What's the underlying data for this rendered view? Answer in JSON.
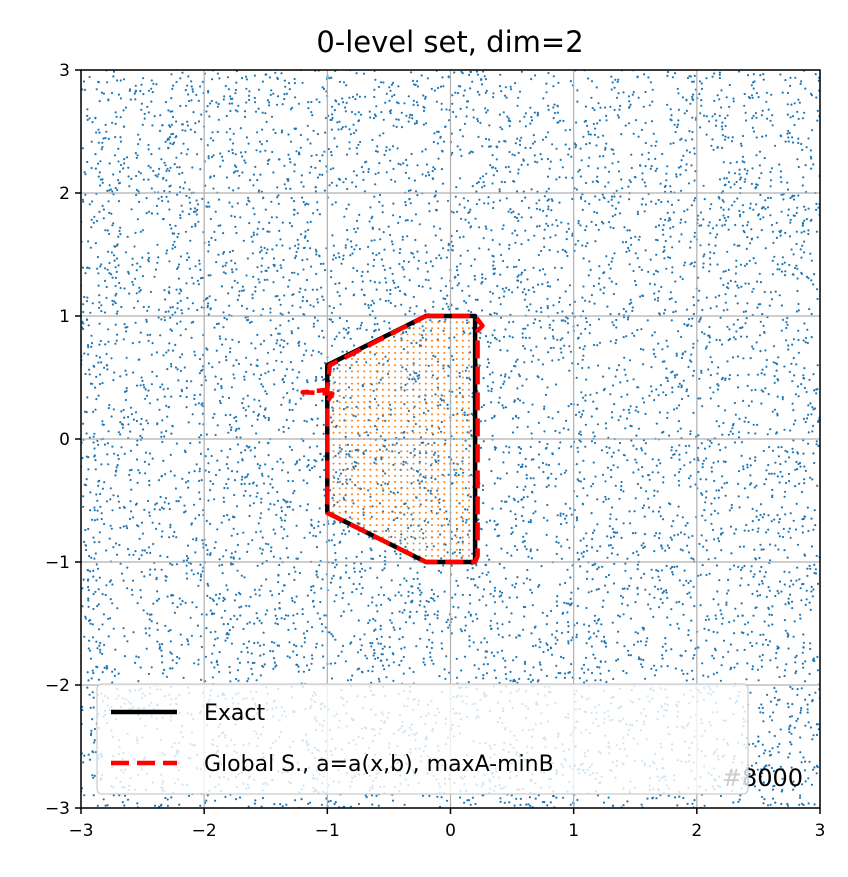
{
  "chart_data": {
    "type": "scatter",
    "title": "0-level set, dim=2",
    "xlabel": "",
    "ylabel": "",
    "xlim": [
      -3,
      3
    ],
    "ylim": [
      -3,
      3
    ],
    "x_ticks": [
      -3,
      -2,
      -1,
      0,
      1,
      2,
      3
    ],
    "y_ticks": [
      -3,
      -2,
      -1,
      0,
      1,
      2,
      3
    ],
    "x_tick_labels": [
      "−3",
      "−2",
      "−1",
      "0",
      "1",
      "2",
      "3"
    ],
    "y_tick_labels": [
      "−3",
      "−2",
      "−1",
      "0",
      "1",
      "2",
      "3"
    ],
    "grid": true,
    "legend_placement": "lower-left",
    "annotation": "#8000",
    "series": [
      {
        "type": "line",
        "name": "Exact",
        "color": "#000000",
        "style": "solid",
        "x": [
          -0.2,
          0.2,
          0.2,
          -0.2,
          -1.0,
          -1.0,
          -0.2
        ],
        "y": [
          1.0,
          1.0,
          -1.0,
          -1.0,
          -0.6,
          0.6,
          1.0
        ]
      },
      {
        "type": "line",
        "name": "Global S., a=a(x,b), maxA-minB",
        "color": "#ff0000",
        "style": "dashed",
        "x": [
          -0.2,
          0.2,
          0.26,
          0.22,
          0.22,
          0.2,
          -0.2,
          -1.0,
          -1.0,
          -0.96,
          -1.2,
          -1.0,
          -0.98,
          -0.2
        ],
        "y": [
          1.0,
          1.0,
          0.92,
          0.88,
          -0.95,
          -1.0,
          -1.0,
          -0.6,
          0.3,
          0.37,
          0.38,
          0.4,
          0.6,
          1.0
        ]
      }
    ],
    "scatter_layers": [
      {
        "color": "#1f77b4",
        "description_count": 8000,
        "region": "uniform",
        "xlim": [
          -3,
          3
        ],
        "ylim": [
          -3,
          3
        ]
      },
      {
        "color": "#ff7f0e",
        "region": "inside-polygon-grid",
        "grid_step": 0.05
      }
    ]
  }
}
